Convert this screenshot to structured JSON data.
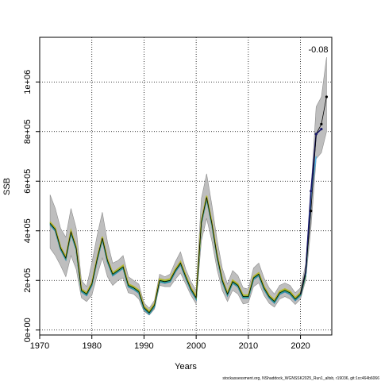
{
  "chart_data": {
    "type": "line",
    "title": "",
    "xlabel": "Years",
    "ylabel": "SSB",
    "xlim": [
      1970,
      2026
    ],
    "ylim": [
      -20000,
      1180000
    ],
    "x_ticks": [
      {
        "value": 1970,
        "label": "1970"
      },
      {
        "value": 1980,
        "label": "1980"
      },
      {
        "value": 1990,
        "label": "1990"
      },
      {
        "value": 2000,
        "label": "2000"
      },
      {
        "value": 2010,
        "label": "2010"
      },
      {
        "value": 2020,
        "label": "2020"
      }
    ],
    "y_ticks": [
      {
        "value": 0,
        "label": "0e+00"
      },
      {
        "value": 200000,
        "label": "2e+05"
      },
      {
        "value": 400000,
        "label": "4e+05"
      },
      {
        "value": 600000,
        "label": "6e+05"
      },
      {
        "value": 800000,
        "label": "8e+05"
      },
      {
        "value": 1000000,
        "label": "1e+06"
      }
    ],
    "grid": true,
    "annotation": "-0.08",
    "footer": "stockassessment.org, NShaddock_WGNSSK2025_Run1_altsb, r19036, git:1cc464b6066",
    "colors": {
      "band": "#bebebe",
      "band_edge": "#8c8c8c",
      "early_peels": "#5ab4e6",
      "late_peels": "#2e8b57",
      "base_run": "#000000",
      "recent_peel": "#1a1a6e"
    },
    "x": [
      1972,
      1973,
      1974,
      1975,
      1976,
      1977,
      1978,
      1979,
      1980,
      1981,
      1982,
      1983,
      1984,
      1985,
      1986,
      1987,
      1988,
      1989,
      1990,
      1991,
      1992,
      1993,
      1994,
      1995,
      1996,
      1997,
      1998,
      1999,
      2000,
      2001,
      2002,
      2003,
      2004,
      2005,
      2006,
      2007,
      2008,
      2009,
      2010,
      2011,
      2012,
      2013,
      2014,
      2015,
      2016,
      2017,
      2018,
      2019,
      2020,
      2021,
      2022,
      2023,
      2024,
      2025
    ],
    "values": [
      430000,
      405000,
      330000,
      290000,
      395000,
      330000,
      160000,
      145000,
      185000,
      285000,
      370000,
      280000,
      225000,
      240000,
      255000,
      180000,
      170000,
      155000,
      90000,
      70000,
      100000,
      200000,
      195000,
      200000,
      240000,
      270000,
      215000,
      165000,
      130000,
      435000,
      535000,
      430000,
      300000,
      200000,
      145000,
      195000,
      180000,
      135000,
      135000,
      210000,
      225000,
      170000,
      135000,
      115000,
      150000,
      160000,
      150000,
      125000,
      145000,
      230000,
      480000,
      790000,
      830000,
      940000
    ],
    "upper": [
      545000,
      490000,
      410000,
      375000,
      490000,
      410000,
      200000,
      175000,
      270000,
      380000,
      475000,
      355000,
      270000,
      280000,
      300000,
      215000,
      200000,
      185000,
      110000,
      88000,
      120000,
      225000,
      215000,
      225000,
      275000,
      315000,
      245000,
      195000,
      160000,
      530000,
      630000,
      505000,
      365000,
      250000,
      185000,
      240000,
      220000,
      170000,
      165000,
      250000,
      270000,
      210000,
      170000,
      145000,
      180000,
      190000,
      180000,
      150000,
      170000,
      265000,
      560000,
      900000,
      940000,
      1100000
    ],
    "lower": [
      330000,
      300000,
      260000,
      215000,
      300000,
      245000,
      130000,
      115000,
      140000,
      220000,
      290000,
      215000,
      180000,
      200000,
      210000,
      150000,
      145000,
      125000,
      75000,
      60000,
      85000,
      180000,
      175000,
      175000,
      205000,
      230000,
      185000,
      140000,
      105000,
      360000,
      450000,
      360000,
      245000,
      160000,
      115000,
      160000,
      145000,
      105000,
      110000,
      175000,
      190000,
      140000,
      108000,
      92000,
      125000,
      135000,
      125000,
      103000,
      125000,
      200000,
      410000,
      690000,
      715000,
      800000
    ],
    "recent_peel": {
      "x": [
        2020,
        2021,
        2022,
        2023,
        2024
      ],
      "values": [
        145000,
        235000,
        560000,
        790000,
        810000
      ]
    },
    "peel_offsets": [
      {
        "color": "#4682b4",
        "offset": -6000
      },
      {
        "color": "#1fa0a0",
        "offset": -3000
      },
      {
        "color": "#3cb371",
        "offset": 0
      },
      {
        "color": "#7cc242",
        "offset": 3000
      },
      {
        "color": "#b5b82a",
        "offset": 6000
      }
    ]
  }
}
